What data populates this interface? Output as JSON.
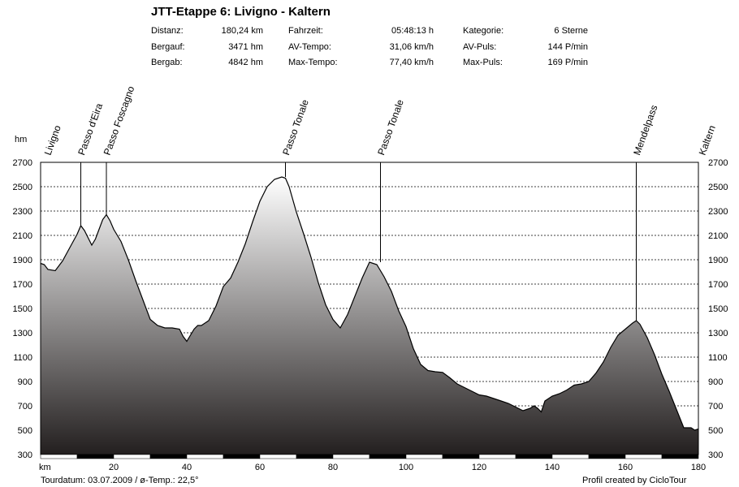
{
  "title": "JTT-Etappe 6: Livigno - Kaltern",
  "stats": {
    "col1": [
      {
        "label": "Distanz:",
        "value": "180,24 km"
      },
      {
        "label": "Bergauf:",
        "value": "3471 hm"
      },
      {
        "label": "Bergab:",
        "value": "4842 hm"
      }
    ],
    "col2": [
      {
        "label": "Fahrzeit:",
        "value": "05:48:13 h"
      },
      {
        "label": "AV-Tempo:",
        "value": "31,06 km/h"
      },
      {
        "label": "Max-Tempo:",
        "value": "77,40 km/h"
      }
    ],
    "col3": [
      {
        "label": "Kategorie:",
        "value": "6 Sterne"
      },
      {
        "label": "AV-Puls:",
        "value": "144 P/min"
      },
      {
        "label": "Max-Puls:",
        "value": "169 P/min"
      }
    ]
  },
  "footer": {
    "left": "Tourdatum: 03.07.2009  /  ø-Temp.: 22,5°",
    "right": "Profil created by CicloTour"
  },
  "chart_data": {
    "type": "area",
    "ylabel": "hm",
    "xlabel": "km",
    "xlim": [
      0,
      180
    ],
    "ylim": [
      300,
      2700
    ],
    "yticks": [
      300,
      500,
      700,
      900,
      1100,
      1300,
      1500,
      1700,
      1900,
      2100,
      2300,
      2500,
      2700
    ],
    "xticks": [
      20,
      40,
      60,
      80,
      100,
      120,
      140,
      160,
      180
    ],
    "grid": true,
    "colors": {
      "fill_top": "#ffffff",
      "fill_bottom": "#231f1f",
      "line": "#000000"
    },
    "profile": {
      "x": [
        0,
        1,
        2,
        4,
        6,
        8,
        10,
        11,
        12,
        13,
        14,
        15,
        16,
        17,
        18,
        19,
        20,
        22,
        24,
        26,
        28,
        30,
        32,
        34,
        36,
        38,
        39,
        40,
        41,
        42,
        43,
        44,
        46,
        48,
        50,
        52,
        54,
        56,
        58,
        60,
        62,
        64,
        66,
        67,
        68,
        70,
        72,
        74,
        76,
        78,
        80,
        82,
        84,
        86,
        88,
        90,
        92,
        94,
        96,
        98,
        100,
        102,
        104,
        106,
        108,
        110,
        112,
        114,
        116,
        118,
        120,
        122,
        124,
        126,
        128,
        130,
        132,
        134,
        135,
        136,
        137,
        138,
        140,
        142,
        144,
        146,
        148,
        150,
        152,
        154,
        156,
        158,
        160,
        162,
        163,
        164,
        166,
        168,
        170,
        172,
        174,
        176,
        178,
        179,
        180
      ],
      "y": [
        1870,
        1860,
        1820,
        1810,
        1890,
        2000,
        2110,
        2180,
        2140,
        2080,
        2020,
        2070,
        2150,
        2230,
        2270,
        2220,
        2150,
        2050,
        1900,
        1730,
        1570,
        1410,
        1360,
        1340,
        1340,
        1330,
        1270,
        1230,
        1280,
        1330,
        1360,
        1360,
        1400,
        1520,
        1680,
        1750,
        1880,
        2030,
        2210,
        2380,
        2500,
        2560,
        2580,
        2570,
        2500,
        2290,
        2110,
        1920,
        1710,
        1530,
        1410,
        1340,
        1450,
        1600,
        1750,
        1880,
        1860,
        1760,
        1640,
        1480,
        1350,
        1170,
        1040,
        990,
        980,
        975,
        930,
        880,
        850,
        820,
        790,
        780,
        760,
        740,
        720,
        690,
        660,
        680,
        700,
        680,
        650,
        740,
        780,
        800,
        830,
        870,
        880,
        900,
        970,
        1060,
        1180,
        1280,
        1330,
        1380,
        1400,
        1370,
        1260,
        1120,
        960,
        820,
        670,
        520,
        520,
        500,
        510
      ]
    },
    "passes": [
      {
        "name": "Livigno",
        "km": 0,
        "hm": 1870
      },
      {
        "name": "Passo d'Eira",
        "km": 11,
        "hm": 2180
      },
      {
        "name": "Passo Foscagno",
        "km": 18,
        "hm": 2270
      },
      {
        "name": "Passo Tonale",
        "km": 67,
        "hm": 2580
      },
      {
        "name": "Passo Tonale",
        "km": 93,
        "hm": 1880
      },
      {
        "name": "Mendelpass",
        "km": 163,
        "hm": 1400
      },
      {
        "name": "Kaltern",
        "km": 180,
        "hm": 510
      }
    ]
  }
}
